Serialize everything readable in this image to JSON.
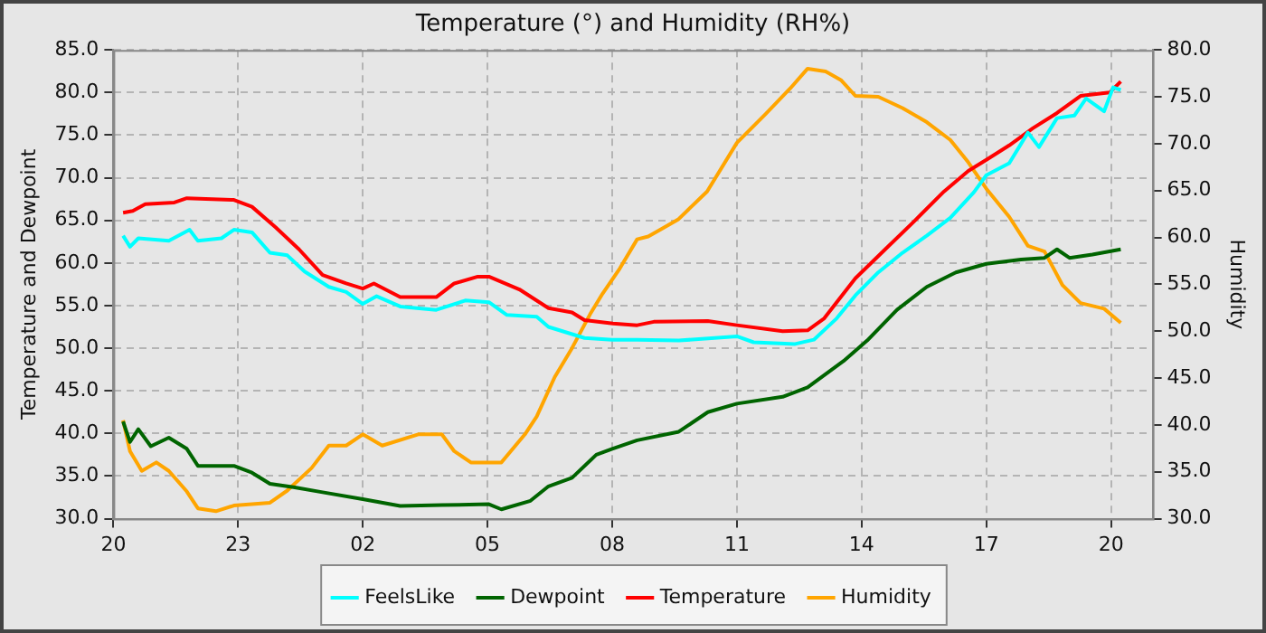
{
  "chart_data": {
    "type": "line",
    "title": "Temperature (°) and Humidity (RH%)",
    "ylabel": "Temperature and Dewpoint",
    "y2label": "Humidity",
    "xlim": [
      "--01-01T20:00",
      "--01-02T21:00"
    ],
    "xticks": [
      {
        "value": "--01-01T20:00",
        "label": "20"
      },
      {
        "value": "--01-01T23:00",
        "label": "23"
      },
      {
        "value": "--01-02T02:00",
        "label": "02"
      },
      {
        "value": "--01-02T05:00",
        "label": "05"
      },
      {
        "value": "--01-02T08:00",
        "label": "08"
      },
      {
        "value": "--01-02T11:00",
        "label": "11"
      },
      {
        "value": "--01-02T14:00",
        "label": "14"
      },
      {
        "value": "--01-02T17:00",
        "label": "17"
      },
      {
        "value": "--01-02T20:00",
        "label": "20"
      }
    ],
    "ylim": [
      30,
      85
    ],
    "yticks": [
      {
        "value": 30,
        "label": "30.0"
      },
      {
        "value": 35,
        "label": "35.0"
      },
      {
        "value": 40,
        "label": "40.0"
      },
      {
        "value": 45,
        "label": "45.0"
      },
      {
        "value": 50,
        "label": "50.0"
      },
      {
        "value": 55,
        "label": "55.0"
      },
      {
        "value": 60,
        "label": "60.0"
      },
      {
        "value": 65,
        "label": "65.0"
      },
      {
        "value": 70,
        "label": "70.0"
      },
      {
        "value": 75,
        "label": "75.0"
      },
      {
        "value": 80,
        "label": "80.0"
      },
      {
        "value": 85,
        "label": "85.0"
      }
    ],
    "y2lim": [
      30,
      80
    ],
    "y2ticks": [
      {
        "value": 30,
        "label": "30.0"
      },
      {
        "value": 35,
        "label": "35.0"
      },
      {
        "value": 40,
        "label": "40.0"
      },
      {
        "value": 45,
        "label": "45.0"
      },
      {
        "value": 50,
        "label": "50.0"
      },
      {
        "value": 55,
        "label": "55.0"
      },
      {
        "value": 60,
        "label": "60.0"
      },
      {
        "value": 65,
        "label": "65.0"
      },
      {
        "value": 70,
        "label": "70.0"
      },
      {
        "value": 75,
        "label": "75.0"
      },
      {
        "value": 80,
        "label": "80.0"
      }
    ],
    "grid": true,
    "legend": "bottom",
    "marker": "none",
    "line_style": "solid",
    "series": [
      {
        "name": "FeelsLike",
        "color": "#00ffff",
        "x": [
          "--01-01T20:14",
          "--01-01T20:24",
          "--01-01T20:36",
          "--01-01T21:20",
          "--01-01T21:50",
          "--01-01T22:02",
          "--01-01T22:36",
          "--01-01T22:54",
          "--01-01T23:20",
          "--01-01T23:46",
          "--01-02T00:11",
          "--01-02T00:36",
          "--01-02T01:11",
          "--01-02T01:36",
          "--01-02T02:00",
          "--01-02T02:20",
          "--01-02T02:54",
          "--01-02T03:46",
          "--01-02T04:28",
          "--01-02T05:02",
          "--01-02T05:28",
          "--01-02T06:11",
          "--01-02T06:28",
          "--01-02T07:20",
          "--01-02T08:00",
          "--01-02T08:36",
          "--01-02T09:36",
          "--01-02T11:00",
          "--01-02T11:24",
          "--01-02T12:24",
          "--01-02T12:51",
          "--01-02T13:24",
          "--01-02T13:51",
          "--01-02T14:24",
          "--01-02T14:59",
          "--01-02T15:34",
          "--01-02T16:08",
          "--01-02T16:42",
          "--01-02T17:00",
          "--01-02T17:33",
          "--01-02T18:00",
          "--01-02T18:16",
          "--01-02T18:42",
          "--01-02T19:07",
          "--01-02T19:24",
          "--01-02T19:50",
          "--01-02T20:03",
          "--01-02T20:14"
        ],
        "values": [
          63.2,
          61.9,
          62.9,
          62.6,
          63.9,
          62.6,
          62.9,
          63.9,
          63.6,
          61.2,
          60.9,
          59,
          57.2,
          56.6,
          55.2,
          56.1,
          54.9,
          54.5,
          55.6,
          55.4,
          53.9,
          53.7,
          52.5,
          51.2,
          51,
          51,
          50.9,
          51.4,
          50.7,
          50.5,
          51,
          53.5,
          56.2,
          58.9,
          61.2,
          63.2,
          65.3,
          68.3,
          70.3,
          71.7,
          75.3,
          73.6,
          77,
          77.3,
          79.3,
          77.8,
          80.6,
          80.3
        ]
      },
      {
        "name": "Dewpoint",
        "color": "#006400",
        "x": [
          "--01-01T20:14",
          "--01-01T20:24",
          "--01-01T20:36",
          "--01-01T20:54",
          "--01-01T21:20",
          "--01-01T21:46",
          "--01-01T22:02",
          "--01-01T22:54",
          "--01-01T23:20",
          "--01-01T23:46",
          "--01-02T00:20",
          "--01-02T01:02",
          "--01-02T02:00",
          "--01-02T02:54",
          "--01-02T03:54",
          "--01-02T05:02",
          "--01-02T05:20",
          "--01-02T06:02",
          "--01-02T06:28",
          "--01-02T07:02",
          "--01-02T07:37",
          "--01-02T08:00",
          "--01-02T08:36",
          "--01-02T09:36",
          "--01-02T10:18",
          "--01-02T11:00",
          "--01-02T12:06",
          "--01-02T12:42",
          "--01-02T13:34",
          "--01-02T14:08",
          "--01-02T14:51",
          "--01-02T15:34",
          "--01-02T16:16",
          "--01-02T17:00",
          "--01-02T17:50",
          "--01-02T18:24",
          "--01-02T18:42",
          "--01-02T19:00",
          "--01-02T19:33",
          "--01-02T20:14"
        ],
        "values": [
          41.4,
          39,
          40.5,
          38.5,
          39.5,
          38.2,
          36.2,
          36.2,
          35.4,
          34.1,
          33.7,
          33.1,
          32.3,
          31.5,
          31.6,
          31.7,
          31.1,
          32.1,
          33.8,
          34.8,
          37.5,
          38.2,
          39.2,
          40.2,
          42.5,
          43.5,
          44.3,
          45.4,
          48.5,
          50.9,
          54.5,
          57.2,
          58.9,
          59.9,
          60.4,
          60.6,
          61.6,
          60.6,
          61,
          61.6
        ]
      },
      {
        "name": "Temperature",
        "color": "#ff0000",
        "x": [
          "--01-01T20:14",
          "--01-01T20:28",
          "--01-01T20:46",
          "--01-01T21:28",
          "--01-01T21:46",
          "--01-01T22:54",
          "--01-01T23:20",
          "--01-01T23:54",
          "--01-02T00:28",
          "--01-02T01:02",
          "--01-02T01:36",
          "--01-02T02:00",
          "--01-02T02:16",
          "--01-02T02:54",
          "--01-02T03:46",
          "--01-02T04:12",
          "--01-02T04:46",
          "--01-02T05:02",
          "--01-02T05:46",
          "--01-02T06:28",
          "--01-02T07:02",
          "--01-02T07:20",
          "--01-02T08:01",
          "--01-02T08:36",
          "--01-02T09:00",
          "--01-02T10:18",
          "--01-02T11:00",
          "--01-02T12:06",
          "--01-02T12:42",
          "--01-02T13:06",
          "--01-02T13:51",
          "--01-02T14:34",
          "--01-02T15:16",
          "--01-02T15:59",
          "--01-02T16:34",
          "--01-02T17:00",
          "--01-02T17:33",
          "--01-02T18:07",
          "--01-02T18:42",
          "--01-02T19:16",
          "--01-02T19:58",
          "--01-02T20:14"
        ],
        "values": [
          65.9,
          66.1,
          66.9,
          67.1,
          67.6,
          67.4,
          66.6,
          64.2,
          61.6,
          58.6,
          57.6,
          57,
          57.6,
          56,
          56,
          57.6,
          58.4,
          58.4,
          56.9,
          54.7,
          54.2,
          53.3,
          52.9,
          52.7,
          53.1,
          53.2,
          52.7,
          52,
          52.1,
          53.5,
          58.2,
          61.6,
          64.9,
          68.4,
          70.8,
          72.1,
          73.8,
          75.8,
          77.6,
          79.6,
          80,
          81.3
        ]
      },
      {
        "name": "Humidity",
        "color": "#ffa500",
        "axis": "y2",
        "x": [
          "--01-01T20:14",
          "--01-01T20:24",
          "--01-01T20:41",
          "--01-01T21:02",
          "--01-01T21:20",
          "--01-01T21:46",
          "--01-01T22:02",
          "--01-01T22:28",
          "--01-01T22:54",
          "--01-01T23:46",
          "--01-02T00:11",
          "--01-02T00:46",
          "--01-02T01:11",
          "--01-02T01:36",
          "--01-02T02:00",
          "--01-02T02:28",
          "--01-02T03:20",
          "--01-02T03:54",
          "--01-02T04:12",
          "--01-02T04:36",
          "--01-02T05:20",
          "--01-02T05:54",
          "--01-02T06:11",
          "--01-02T06:37",
          "--01-02T07:02",
          "--01-02T07:28",
          "--01-02T07:46",
          "--01-02T08:11",
          "--01-02T08:36",
          "--01-02T08:52",
          "--01-02T09:35",
          "--01-02T10:17",
          "--01-02T11:00",
          "--01-02T11:42",
          "--01-02T12:17",
          "--01-02T12:42",
          "--01-02T13:08",
          "--01-02T13:30",
          "--01-02T13:51",
          "--01-02T14:24",
          "--01-02T14:59",
          "--01-02T15:34",
          "--01-02T16:08",
          "--01-02T16:34",
          "--01-02T17:00",
          "--01-02T17:33",
          "--01-02T18:00",
          "--01-02T18:24",
          "--01-02T18:50",
          "--01-02T19:16",
          "--01-02T19:50",
          "--01-02T20:14"
        ],
        "values": [
          40.5,
          37.2,
          35.1,
          36,
          35.1,
          32.9,
          31.1,
          30.8,
          31.4,
          31.7,
          33,
          35.4,
          37.8,
          37.8,
          39,
          37.8,
          39,
          39,
          37.2,
          36,
          36,
          39,
          40.9,
          45.1,
          48.2,
          51.8,
          54,
          56.7,
          59.8,
          60.1,
          61.9,
          64.9,
          70.1,
          73.2,
          75.9,
          78,
          77.7,
          76.8,
          75.1,
          75,
          73.8,
          72.3,
          70.4,
          68,
          65.2,
          62.2,
          59.1,
          58.5,
          54.9,
          53,
          52.4,
          50.9
        ]
      }
    ]
  }
}
